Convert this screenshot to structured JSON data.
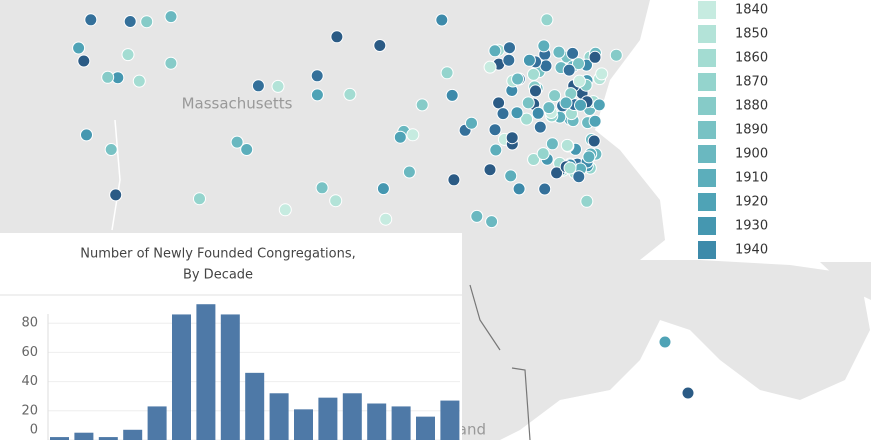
{
  "map": {
    "place_labels": [
      "Massachusetts",
      "Rhode Island"
    ],
    "legend": {
      "items": [
        {
          "label": "1840",
          "color": "#c6ebe0"
        },
        {
          "label": "1850",
          "color": "#b3e3d8"
        },
        {
          "label": "1860",
          "color": "#a3dcd2"
        },
        {
          "label": "1870",
          "color": "#94d4cd"
        },
        {
          "label": "1880",
          "color": "#86cbc8"
        },
        {
          "label": "1890",
          "color": "#78c2c4"
        },
        {
          "label": "1900",
          "color": "#6ab8c0"
        },
        {
          "label": "1910",
          "color": "#5caebb"
        },
        {
          "label": "1920",
          "color": "#4fa3b6"
        },
        {
          "label": "1930",
          "color": "#4597b0"
        },
        {
          "label": "1940",
          "color": "#3d8aaa"
        }
      ]
    }
  },
  "chart_data": {
    "type": "bar",
    "title": [
      "Number of Newly Founded Congregations,",
      "By Decade"
    ],
    "values": [
      2,
      5,
      2,
      7,
      23,
      86,
      93,
      86,
      46,
      32,
      21,
      29,
      32,
      25,
      23,
      16,
      27
    ],
    "color": "#4e79a7",
    "ylim": [
      0,
      100
    ],
    "yticks": [
      0,
      20,
      40,
      60,
      80
    ],
    "grid": true
  }
}
